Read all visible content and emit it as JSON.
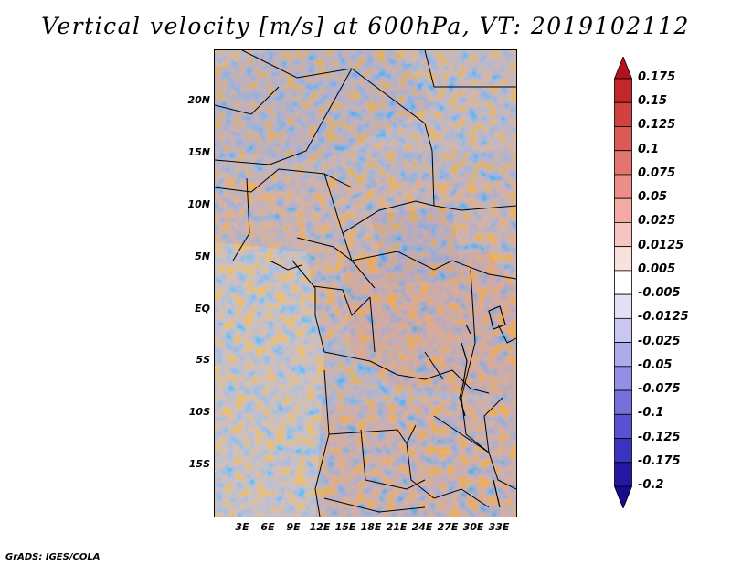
{
  "title": "Vertical velocity [m/s] at 600hPa, VT: 2019102112",
  "credit": "GrADS: IGES/COLA",
  "lat_labels": [
    "20N",
    "15N",
    "10N",
    "5N",
    "EQ",
    "5S",
    "10S",
    "15S"
  ],
  "lon_labels": [
    "3E",
    "6E",
    "9E",
    "12E",
    "15E",
    "18E",
    "21E",
    "24E",
    "27E",
    "30E",
    "33E"
  ],
  "colorbar": {
    "labels": [
      "0.175",
      "0.15",
      "0.125",
      "0.1",
      "0.075",
      "0.05",
      "0.025",
      "0.0125",
      "0.005",
      "-0.005",
      "-0.0125",
      "-0.025",
      "-0.05",
      "-0.075",
      "-0.1",
      "-0.125",
      "-0.175",
      "-0.2"
    ],
    "colors": [
      "#b3111b",
      "#c3272c",
      "#d1413f",
      "#dc5a56",
      "#e4746e",
      "#ec8f88",
      "#f2aaa3",
      "#f7c5c0",
      "#fbe1de",
      "#ffffff",
      "#e3e1f7",
      "#c9c6f1",
      "#aeaaeb",
      "#938fe4",
      "#7570dc",
      "#5852d0",
      "#3a33bf",
      "#2516a3",
      "#1a0a8c"
    ]
  }
}
